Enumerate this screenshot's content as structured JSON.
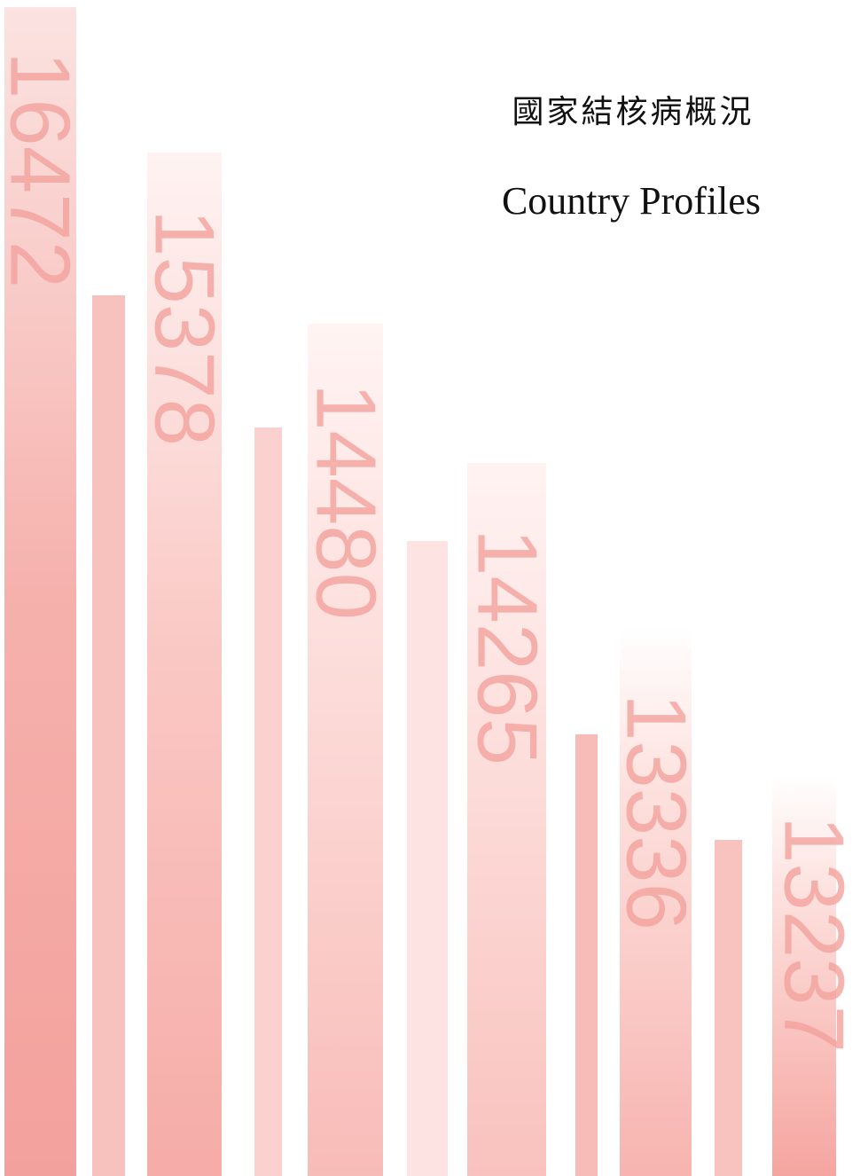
{
  "title_zh": "國家結核病概況",
  "title_en": "Country Profiles",
  "bar_labels": [
    16472,
    15378,
    14480,
    14265,
    13336,
    13237
  ]
}
